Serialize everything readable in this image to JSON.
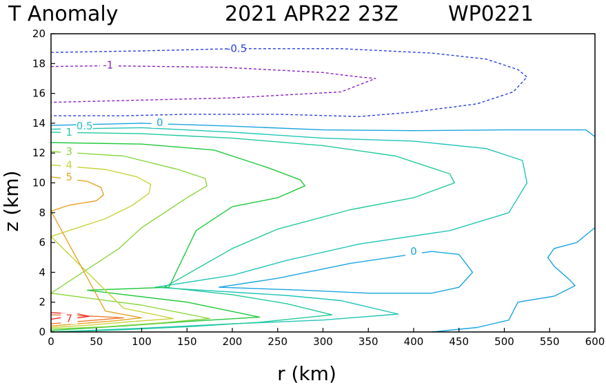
{
  "chart_data": {
    "type": "contour",
    "title": "T Anomaly",
    "date": "2021 APR22 23Z",
    "storm_id": "WP0221",
    "xlabel": "r (km)",
    "ylabel": "z (km)",
    "xlim": [
      0,
      600
    ],
    "ylim": [
      0,
      20
    ],
    "x_ticks": [
      0,
      50,
      100,
      150,
      200,
      250,
      300,
      350,
      400,
      450,
      500,
      550,
      600
    ],
    "y_ticks": [
      0,
      2,
      4,
      6,
      8,
      10,
      12,
      14,
      16,
      18,
      20
    ],
    "grid": false,
    "contours": [
      {
        "level": "-1",
        "style": "dashed",
        "color": "#8a1fc4",
        "label": {
          "text": "-1",
          "x": 63,
          "y": 17.9
        },
        "x": [
          0,
          60,
          190,
          300,
          340,
          358,
          320,
          200,
          0
        ],
        "y": [
          17.8,
          17.85,
          17.75,
          17.4,
          17.1,
          17.0,
          16.1,
          15.7,
          15.4
        ]
      },
      {
        "level": "-0.5",
        "style": "dashed",
        "color": "#2b3ee0",
        "label": {
          "text": "-0.5",
          "x": 205,
          "y": 19.0
        },
        "x": [
          0,
          100,
          200,
          320,
          420,
          480,
          515,
          525,
          510,
          470,
          400,
          340,
          250,
          150,
          80,
          0
        ],
        "y": [
          18.75,
          18.85,
          19.0,
          19.0,
          18.7,
          18.3,
          17.6,
          17.1,
          16.1,
          15.3,
          14.75,
          14.45,
          14.6,
          14.6,
          14.5,
          14.5
        ]
      },
      {
        "level": "0",
        "style": "solid",
        "color": "#19a3e0",
        "label": {
          "text": "0",
          "x": 120,
          "y": 14.05
        },
        "x": [
          0,
          100,
          200,
          300,
          400,
          500,
          590,
          600
        ],
        "y": [
          13.85,
          14.0,
          13.8,
          13.55,
          13.5,
          13.55,
          13.55,
          13.1
        ]
      },
      {
        "level": "0",
        "style": "solid",
        "color": "#19a3e0",
        "label": {
          "text": "0",
          "x": 400,
          "y": 5.4
        },
        "x": [
          185,
          250,
          330,
          420,
          450,
          465,
          450,
          420,
          350,
          280,
          185
        ],
        "y": [
          3.0,
          3.6,
          4.6,
          5.4,
          5.2,
          4.0,
          3.0,
          2.6,
          2.6,
          2.8,
          3.0
        ]
      },
      {
        "level": "0",
        "style": "solid",
        "color": "#19a3e0",
        "x": [
          600,
          580,
          555,
          548,
          555,
          572,
          578,
          555,
          515,
          505,
          470,
          420
        ],
        "y": [
          7.0,
          6.0,
          5.6,
          5.0,
          4.4,
          3.5,
          3.1,
          2.4,
          2.0,
          0.8,
          0.3,
          0.0
        ]
      },
      {
        "level": "0.5",
        "style": "solid",
        "color": "#21c4b8",
        "label": {
          "text": "0.5",
          "x": 37,
          "y": 13.8
        },
        "x": [
          0,
          100,
          200,
          300,
          400,
          480,
          520,
          525,
          505,
          440,
          340,
          260,
          200,
          115,
          260,
          320,
          383,
          300,
          200,
          100,
          0
        ],
        "y": [
          13.6,
          13.7,
          13.4,
          13.0,
          12.8,
          12.3,
          11.5,
          10.0,
          8.0,
          6.8,
          5.9,
          4.8,
          3.8,
          3.0,
          2.45,
          2.1,
          1.2,
          0.8,
          0.55,
          0.25,
          0.0
        ]
      },
      {
        "level": "1",
        "style": "solid",
        "color": "#20c99a",
        "label": {
          "text": "1",
          "x": 20,
          "y": 13.4
        },
        "x": [
          0,
          100,
          200,
          300,
          380,
          440,
          445,
          400,
          330,
          250,
          200,
          125,
          200,
          260,
          310,
          230,
          150,
          80,
          0
        ],
        "y": [
          13.4,
          13.3,
          13.0,
          12.5,
          11.8,
          10.6,
          10.0,
          9.0,
          8.2,
          6.9,
          5.6,
          3.0,
          2.5,
          1.9,
          1.15,
          0.65,
          0.35,
          0.15,
          0.0
        ]
      },
      {
        "level": "2",
        "style": "solid",
        "color": "#1ec83a",
        "x": [
          0,
          100,
          180,
          240,
          275,
          280,
          250,
          200,
          160,
          130,
          40,
          150,
          230,
          150,
          80,
          0
        ],
        "y": [
          12.7,
          12.6,
          12.2,
          11.0,
          10.2,
          9.8,
          9.0,
          8.4,
          6.8,
          3.0,
          2.8,
          2.0,
          1.0,
          0.7,
          0.4,
          0.1
        ]
      },
      {
        "level": "3",
        "style": "solid",
        "color": "#8ad63c",
        "label": {
          "text": "3",
          "x": 20,
          "y": 12.1
        },
        "x": [
          0,
          80,
          140,
          170,
          172,
          150,
          100,
          75,
          0,
          100,
          175,
          120,
          60,
          0
        ],
        "y": [
          12.1,
          11.8,
          10.9,
          10.3,
          9.8,
          9.0,
          7.0,
          5.6,
          2.6,
          1.8,
          0.9,
          0.6,
          0.35,
          0.2
        ]
      },
      {
        "level": "4",
        "style": "solid",
        "color": "#c8d23a",
        "label": {
          "text": "4",
          "x": 20,
          "y": 11.2
        },
        "x": [
          0,
          60,
          95,
          110,
          108,
          90,
          60,
          0,
          80,
          135,
          90,
          40,
          0
        ],
        "y": [
          11.2,
          10.9,
          10.4,
          9.9,
          9.3,
          8.5,
          7.6,
          6.4,
          1.6,
          0.9,
          0.7,
          0.45,
          0.3
        ]
      },
      {
        "level": "5",
        "style": "solid",
        "color": "#e6a322",
        "label": {
          "text": "5",
          "x": 20,
          "y": 10.4
        },
        "x": [
          0,
          40,
          55,
          58,
          50,
          20,
          0,
          60,
          100,
          70,
          30,
          0
        ],
        "y": [
          10.4,
          10.1,
          9.7,
          9.2,
          8.8,
          8.5,
          8.1,
          1.4,
          0.95,
          0.75,
          0.55,
          0.4
        ]
      },
      {
        "level": "6",
        "style": "solid",
        "color": "#f07a30",
        "x": [
          0,
          50,
          80,
          50,
          20,
          0
        ],
        "y": [
          1.15,
          1.05,
          0.95,
          0.8,
          0.65,
          0.55
        ]
      },
      {
        "level": "7",
        "style": "solid",
        "color": "#ee2a2a",
        "label": {
          "text": "7",
          "x": 20,
          "y": 0.9
        },
        "x": [
          0,
          30,
          42,
          30,
          10,
          0
        ],
        "y": [
          1.3,
          1.2,
          1.05,
          0.95,
          0.95,
          0.85
        ]
      }
    ]
  }
}
